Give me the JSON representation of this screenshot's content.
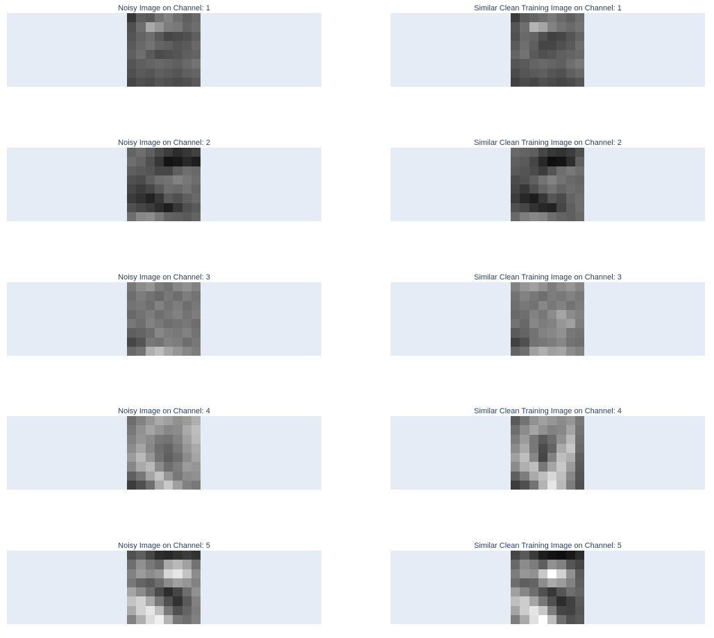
{
  "chart_data": [
    {
      "type": "heatmap",
      "title": "Noisy Image on Channel: 1",
      "colorscale": "greys",
      "z": [
        [
          55,
          95,
          88,
          115,
          130,
          110,
          95,
          105
        ],
        [
          80,
          110,
          170,
          150,
          125,
          120,
          100,
          110
        ],
        [
          85,
          100,
          110,
          90,
          70,
          75,
          80,
          95
        ],
        [
          90,
          105,
          115,
          100,
          95,
          85,
          90,
          105
        ],
        [
          95,
          110,
          90,
          75,
          80,
          85,
          95,
          100
        ],
        [
          85,
          95,
          100,
          105,
          100,
          95,
          105,
          115
        ],
        [
          80,
          90,
          85,
          95,
          90,
          85,
          95,
          100
        ],
        [
          70,
          80,
          75,
          85,
          80,
          75,
          80,
          90
        ]
      ]
    },
    {
      "type": "heatmap",
      "title": "Similar Clean Training Image on Channel: 1",
      "colorscale": "greys",
      "z": [
        [
          60,
          90,
          100,
          110,
          120,
          105,
          95,
          110
        ],
        [
          85,
          110,
          180,
          165,
          130,
          115,
          105,
          115
        ],
        [
          80,
          105,
          100,
          80,
          65,
          70,
          85,
          100
        ],
        [
          90,
          110,
          95,
          70,
          70,
          80,
          90,
          110
        ],
        [
          100,
          115,
          90,
          80,
          85,
          95,
          100,
          105
        ],
        [
          85,
          90,
          100,
          105,
          100,
          95,
          110,
          120
        ],
        [
          75,
          85,
          90,
          95,
          85,
          80,
          95,
          105
        ],
        [
          65,
          75,
          70,
          80,
          75,
          70,
          75,
          85
        ]
      ]
    },
    {
      "type": "heatmap",
      "title": "Noisy Image on Channel: 2",
      "colorscale": "greys",
      "z": [
        [
          100,
          110,
          95,
          75,
          60,
          45,
          55,
          65
        ],
        [
          110,
          100,
          80,
          55,
          20,
          25,
          40,
          30
        ],
        [
          95,
          90,
          85,
          70,
          70,
          95,
          110,
          105
        ],
        [
          80,
          75,
          95,
          110,
          115,
          130,
          120,
          110
        ],
        [
          70,
          60,
          70,
          90,
          110,
          105,
          115,
          100
        ],
        [
          60,
          50,
          35,
          55,
          90,
          80,
          95,
          105
        ],
        [
          80,
          70,
          60,
          45,
          30,
          55,
          80,
          90
        ],
        [
          110,
          135,
          140,
          120,
          100,
          95,
          90,
          100
        ]
      ]
    },
    {
      "type": "heatmap",
      "title": "Similar Clean Training Image on Channel: 2",
      "colorscale": "greys",
      "z": [
        [
          105,
          100,
          95,
          70,
          55,
          50,
          60,
          80
        ],
        [
          95,
          90,
          70,
          40,
          15,
          20,
          45,
          95
        ],
        [
          90,
          85,
          75,
          60,
          85,
          110,
          120,
          110
        ],
        [
          75,
          80,
          95,
          115,
          130,
          115,
          105,
          100
        ],
        [
          70,
          55,
          80,
          100,
          115,
          100,
          110,
          105
        ],
        [
          60,
          40,
          30,
          55,
          85,
          75,
          100,
          110
        ],
        [
          80,
          70,
          50,
          40,
          35,
          70,
          95,
          110
        ],
        [
          105,
          125,
          135,
          130,
          110,
          100,
          95,
          105
        ]
      ]
    },
    {
      "type": "heatmap",
      "title": "Noisy Image on Channel: 3",
      "colorscale": "greys",
      "z": [
        [
          120,
          140,
          150,
          125,
          115,
          135,
          145,
          130
        ],
        [
          110,
          125,
          115,
          105,
          120,
          110,
          125,
          115
        ],
        [
          115,
          120,
          110,
          130,
          115,
          125,
          110,
          120
        ],
        [
          105,
          115,
          125,
          110,
          120,
          130,
          115,
          125
        ],
        [
          120,
          110,
          130,
          120,
          110,
          115,
          120,
          110
        ],
        [
          95,
          100,
          110,
          135,
          125,
          120,
          130,
          115
        ],
        [
          70,
          85,
          120,
          115,
          130,
          125,
          110,
          120
        ],
        [
          105,
          115,
          175,
          190,
          165,
          150,
          135,
          125
        ]
      ]
    },
    {
      "type": "heatmap",
      "title": "Similar Clean Training Image on Channel: 3",
      "colorscale": "greys",
      "z": [
        [
          130,
          150,
          160,
          145,
          125,
          140,
          150,
          135
        ],
        [
          115,
          130,
          120,
          110,
          125,
          120,
          130,
          120
        ],
        [
          110,
          120,
          115,
          135,
          120,
          130,
          115,
          125
        ],
        [
          105,
          110,
          130,
          120,
          140,
          165,
          140,
          130
        ],
        [
          115,
          105,
          135,
          125,
          130,
          150,
          160,
          125
        ],
        [
          90,
          100,
          115,
          130,
          135,
          145,
          120,
          115
        ],
        [
          65,
          80,
          115,
          120,
          125,
          135,
          115,
          110
        ],
        [
          100,
          110,
          160,
          175,
          160,
          165,
          140,
          130
        ]
      ]
    },
    {
      "type": "heatmap",
      "title": "Noisy Image on Channel: 4",
      "colorscale": "greys",
      "z": [
        [
          110,
          130,
          150,
          170,
          160,
          145,
          155,
          175
        ],
        [
          120,
          145,
          165,
          150,
          135,
          140,
          170,
          190
        ],
        [
          130,
          150,
          140,
          120,
          115,
          130,
          160,
          185
        ],
        [
          140,
          165,
          135,
          110,
          100,
          120,
          150,
          170
        ],
        [
          155,
          185,
          150,
          115,
          95,
          110,
          140,
          165
        ],
        [
          135,
          170,
          185,
          140,
          110,
          125,
          155,
          150
        ],
        [
          95,
          120,
          165,
          195,
          150,
          120,
          140,
          145
        ],
        [
          60,
          80,
          110,
          170,
          200,
          160,
          130,
          120
        ]
      ]
    },
    {
      "type": "heatmap",
      "title": "Similar Clean Training Image on Channel: 4",
      "colorscale": "greys",
      "z": [
        [
          90,
          115,
          145,
          160,
          150,
          140,
          150,
          120
        ],
        [
          110,
          140,
          165,
          145,
          130,
          135,
          165,
          115
        ],
        [
          125,
          155,
          120,
          90,
          110,
          145,
          185,
          110
        ],
        [
          140,
          170,
          120,
          75,
          100,
          170,
          200,
          105
        ],
        [
          160,
          190,
          135,
          70,
          130,
          190,
          175,
          95
        ],
        [
          140,
          175,
          190,
          120,
          165,
          200,
          155,
          90
        ],
        [
          95,
          125,
          170,
          190,
          215,
          190,
          135,
          85
        ],
        [
          60,
          80,
          115,
          180,
          230,
          185,
          125,
          80
        ]
      ]
    },
    {
      "type": "heatmap",
      "title": "Noisy Image on Channel: 5",
      "colorscale": "greys",
      "z": [
        [
          80,
          95,
          70,
          45,
          40,
          50,
          60,
          50
        ],
        [
          110,
          145,
          120,
          105,
          170,
          185,
          160,
          115
        ],
        [
          130,
          155,
          140,
          150,
          215,
          230,
          195,
          140
        ],
        [
          120,
          100,
          90,
          110,
          140,
          160,
          150,
          130
        ],
        [
          165,
          140,
          110,
          75,
          45,
          70,
          110,
          145
        ],
        [
          195,
          210,
          170,
          120,
          80,
          50,
          90,
          130
        ],
        [
          170,
          210,
          230,
          190,
          120,
          80,
          100,
          125
        ],
        [
          130,
          175,
          220,
          240,
          180,
          120,
          110,
          130
        ]
      ]
    },
    {
      "type": "heatmap",
      "title": "Similar Clean Training Image on Channel: 5",
      "colorscale": "greys",
      "z": [
        [
          70,
          90,
          60,
          30,
          20,
          15,
          25,
          45
        ],
        [
          105,
          140,
          125,
          95,
          145,
          130,
          85,
          70
        ],
        [
          125,
          150,
          145,
          200,
          255,
          210,
          145,
          90
        ],
        [
          110,
          95,
          100,
          140,
          170,
          155,
          130,
          95
        ],
        [
          160,
          135,
          110,
          80,
          55,
          85,
          110,
          100
        ],
        [
          190,
          205,
          165,
          120,
          80,
          45,
          65,
          90
        ],
        [
          165,
          205,
          230,
          200,
          125,
          70,
          65,
          85
        ],
        [
          125,
          170,
          225,
          255,
          190,
          110,
          80,
          90
        ]
      ]
    }
  ]
}
